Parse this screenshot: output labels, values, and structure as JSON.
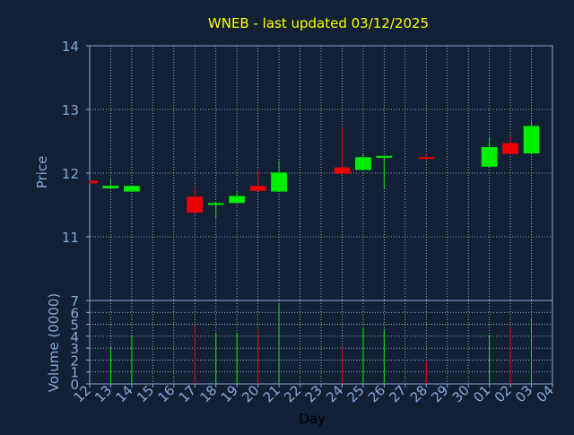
{
  "title": "WNEB - last updated 03/12/2025",
  "colors": {
    "background": "#112035",
    "up": "#00ee00",
    "down": "#ee0000",
    "axis_text": "#8aa8d6",
    "title": "#ffff00",
    "grid": "#c8c8c8",
    "xlabel": "#000000"
  },
  "chart_data": [
    {
      "type": "candlestick",
      "ylabel": "Price",
      "ylim": [
        10,
        14
      ],
      "y_ticks": [
        11,
        12,
        13,
        14
      ],
      "grid": true,
      "x_ticks": [
        "12",
        "13",
        "14",
        "15",
        "16",
        "17",
        "18",
        "19",
        "20",
        "21",
        "22",
        "23",
        "24",
        "25",
        "26",
        "27",
        "28",
        "29",
        "30",
        "01",
        "02",
        "03",
        "04"
      ],
      "candles": [
        {
          "x": "12",
          "open": 11.88,
          "close": 11.84,
          "high": 11.88,
          "low": 11.84
        },
        {
          "x": "13",
          "open": 11.76,
          "close": 11.8,
          "high": 11.9,
          "low": 11.76
        },
        {
          "x": "14",
          "open": 11.71,
          "close": 11.8,
          "high": 11.8,
          "low": 11.71
        },
        {
          "x": "17",
          "open": 11.63,
          "close": 11.38,
          "high": 11.78,
          "low": 11.38
        },
        {
          "x": "18",
          "open": 11.5,
          "close": 11.53,
          "high": 11.55,
          "low": 11.3
        },
        {
          "x": "19",
          "open": 11.53,
          "close": 11.64,
          "high": 11.7,
          "low": 11.53
        },
        {
          "x": "20",
          "open": 11.8,
          "close": 11.72,
          "high": 12.05,
          "low": 11.72
        },
        {
          "x": "21",
          "open": 11.71,
          "close": 12.01,
          "high": 12.2,
          "low": 11.71
        },
        {
          "x": "24",
          "open": 12.09,
          "close": 11.99,
          "high": 12.73,
          "low": 11.99
        },
        {
          "x": "25",
          "open": 12.05,
          "close": 12.25,
          "high": 12.3,
          "low": 12.05
        },
        {
          "x": "26",
          "open": 12.25,
          "close": 12.27,
          "high": 12.27,
          "low": 11.75
        },
        {
          "x": "28",
          "open": 12.25,
          "close": 12.24,
          "high": 12.3,
          "low": 12.2
        },
        {
          "x": "01",
          "open": 12.1,
          "close": 12.41,
          "high": 12.57,
          "low": 12.1
        },
        {
          "x": "02",
          "open": 12.47,
          "close": 12.3,
          "high": 12.59,
          "low": 12.3
        },
        {
          "x": "03",
          "open": 12.31,
          "close": 12.74,
          "high": 12.83,
          "low": 12.31
        }
      ]
    },
    {
      "type": "bar",
      "ylabel": "Volume (0000)",
      "xlabel": "Day",
      "ylim": [
        0,
        7
      ],
      "y_ticks": [
        0,
        1,
        2,
        3,
        4,
        5,
        6,
        7
      ],
      "grid": true,
      "x_ticks": [
        "12",
        "13",
        "14",
        "15",
        "16",
        "17",
        "18",
        "19",
        "20",
        "21",
        "22",
        "23",
        "24",
        "25",
        "26",
        "27",
        "28",
        "29",
        "30",
        "01",
        "02",
        "03",
        "04"
      ],
      "bars": [
        {
          "x": "13",
          "value": 3.1,
          "direction": "up"
        },
        {
          "x": "14",
          "value": 4.1,
          "direction": "up"
        },
        {
          "x": "17",
          "value": 4.9,
          "direction": "down"
        },
        {
          "x": "18",
          "value": 4.2,
          "direction": "up"
        },
        {
          "x": "19",
          "value": 4.3,
          "direction": "up"
        },
        {
          "x": "20",
          "value": 4.6,
          "direction": "down"
        },
        {
          "x": "21",
          "value": 6.7,
          "direction": "up"
        },
        {
          "x": "24",
          "value": 3.0,
          "direction": "down"
        },
        {
          "x": "25",
          "value": 4.7,
          "direction": "up"
        },
        {
          "x": "26",
          "value": 4.6,
          "direction": "up"
        },
        {
          "x": "28",
          "value": 1.8,
          "direction": "down"
        },
        {
          "x": "01",
          "value": 4.1,
          "direction": "up"
        },
        {
          "x": "02",
          "value": 4.8,
          "direction": "down"
        },
        {
          "x": "03",
          "value": 5.5,
          "direction": "up"
        }
      ]
    }
  ]
}
